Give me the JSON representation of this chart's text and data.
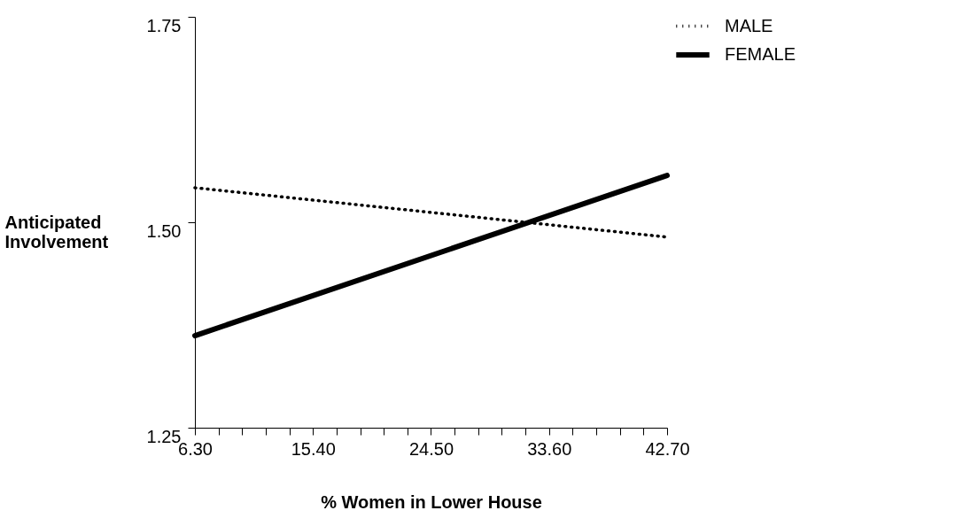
{
  "chart_data": {
    "type": "line",
    "xlabel": "% Women in Lower House",
    "ylabel": "Anticipated\nInvolvement",
    "x": [
      6.3,
      42.7
    ],
    "series": [
      {
        "name": "MALE",
        "color": "#000000",
        "values": [
          1.542,
          1.482
        ],
        "line_style": "dotted"
      },
      {
        "name": "FEMALE",
        "color": "#000000",
        "values": [
          1.362,
          1.557
        ],
        "line_style": "solid"
      }
    ],
    "xlim": [
      6.3,
      42.7
    ],
    "xticks": [
      {
        "value": 6.3,
        "label": "6.30"
      },
      {
        "value": 8.12,
        "label": null
      },
      {
        "value": 9.94,
        "label": null
      },
      {
        "value": 11.76,
        "label": null
      },
      {
        "value": 13.58,
        "label": null
      },
      {
        "value": 15.4,
        "label": "15.40"
      },
      {
        "value": 17.22,
        "label": null
      },
      {
        "value": 19.04,
        "label": null
      },
      {
        "value": 20.86,
        "label": null
      },
      {
        "value": 22.68,
        "label": null
      },
      {
        "value": 24.5,
        "label": "24.50"
      },
      {
        "value": 26.32,
        "label": null
      },
      {
        "value": 28.14,
        "label": null
      },
      {
        "value": 29.96,
        "label": null
      },
      {
        "value": 31.78,
        "label": null
      },
      {
        "value": 33.6,
        "label": "33.60"
      },
      {
        "value": 35.42,
        "label": null
      },
      {
        "value": 37.24,
        "label": null
      },
      {
        "value": 39.06,
        "label": null
      },
      {
        "value": 40.88,
        "label": null
      },
      {
        "value": 42.7,
        "label": "42.70"
      }
    ],
    "ylim": [
      1.25,
      1.75
    ],
    "yticks": [
      1.25,
      {
        "value": 1.5,
        "label": "1.50"
      },
      1.75
    ],
    "grid": false,
    "legend": "top right",
    "marker": "none"
  }
}
